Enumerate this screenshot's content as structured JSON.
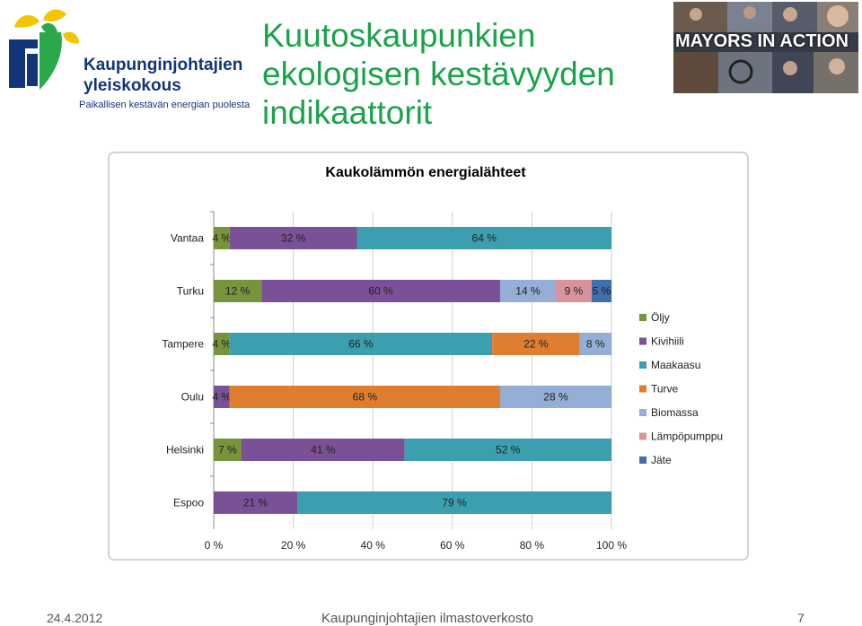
{
  "header": {
    "logo": {
      "line1": "Kaupunginjohtajien",
      "line2": "yleiskokous",
      "tagline": "Paikallisen kestävän energian puolesta"
    },
    "title_lines": [
      "Kuutoskaupunkien",
      "ekologisen kestävyyden",
      "indikaattorit"
    ],
    "mayors_banner": "MAYORS IN ACTION"
  },
  "colors": {
    "title": "#1aa34a",
    "logo_blue": "#12357a",
    "logo_yellow": "#f2c500",
    "logo_green": "#2aa84a"
  },
  "chart_data": {
    "type": "bar",
    "orientation": "horizontal",
    "stacked": "percent",
    "title": "Kaukolämmön energialähteet",
    "categories": [
      "Vantaa",
      "Turku",
      "Tampere",
      "Oulu",
      "Helsinki",
      "Espoo"
    ],
    "xlim": [
      0,
      100
    ],
    "x_ticks": [
      "0 %",
      "20 %",
      "40 %",
      "60 %",
      "80 %",
      "100 %"
    ],
    "grid": "vertical",
    "legend_position": "right",
    "series": [
      {
        "name": "Öljy",
        "color": "#77933c",
        "values": [
          4,
          12,
          4,
          0,
          7,
          0
        ]
      },
      {
        "name": "Kivihiili",
        "color": "#7a5196",
        "values": [
          32,
          60,
          0,
          4,
          41,
          21
        ]
      },
      {
        "name": "Maakaasu",
        "color": "#3b9fb0",
        "values": [
          64,
          0,
          66,
          0,
          52,
          79
        ]
      },
      {
        "name": "Turve",
        "color": "#e07e2f",
        "values": [
          0,
          0,
          22,
          68,
          0,
          0
        ]
      },
      {
        "name": "Biomassa",
        "color": "#95aed6",
        "values": [
          0,
          14,
          8,
          28,
          0,
          0
        ]
      },
      {
        "name": "Lämpöpumppu",
        "color": "#d9939b",
        "values": [
          0,
          9,
          0,
          0,
          0,
          0
        ]
      },
      {
        "name": "Jäte",
        "color": "#3f6fad",
        "values": [
          0,
          5,
          0,
          0,
          0,
          0
        ]
      }
    ],
    "data_labels": [
      [
        "4 %",
        "32 %",
        "64 %",
        "",
        "",
        "",
        ""
      ],
      [
        "12 %",
        "60 %",
        "",
        "",
        "14 %",
        "9 %",
        "5 %"
      ],
      [
        "4 %",
        "",
        "66 %",
        "22 %",
        "8 %",
        "",
        ""
      ],
      [
        "",
        "4 %",
        "",
        "68 %",
        "28 %",
        "",
        ""
      ],
      [
        "7 %",
        "41 %",
        "52 %",
        "",
        "",
        "",
        ""
      ],
      [
        "",
        "21 %",
        "79 %",
        "",
        "",
        "",
        ""
      ]
    ]
  },
  "footer": {
    "date": "24.4.2012",
    "center": "Kaupunginjohtajien ilmastoverkosto",
    "page": "7"
  }
}
